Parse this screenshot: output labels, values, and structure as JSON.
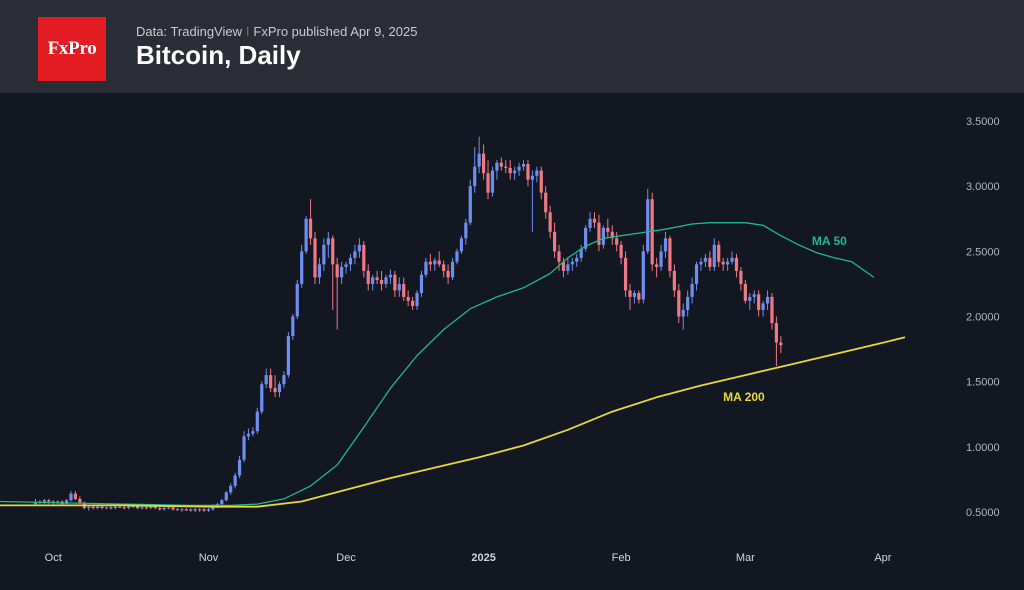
{
  "header": {
    "logo_text": "FxPro",
    "source": "Data: TradingView",
    "separator": "ǀ",
    "publisher": "FxPro published Apr 9, 2025",
    "title": "Bitcoin, Daily"
  },
  "colors": {
    "background": "#131722",
    "header_bg": "#2a2d35",
    "logo_red": "#e31b23",
    "up": "#6f8ff0",
    "down": "#f07a84",
    "ma50": "#1fb98a",
    "ma200": "#e8d83a"
  },
  "chart_data": {
    "type": "candlestick",
    "title": "Bitcoin, Daily",
    "ylim": [
      0.3,
      3.6
    ],
    "y_ticks": [
      "3.5000",
      "3.0000",
      "2.5000",
      "2.0000",
      "1.5000",
      "1.0000",
      "0.5000"
    ],
    "y_tick_values": [
      3.5,
      3.0,
      2.5,
      2.0,
      1.5,
      1.0,
      0.5
    ],
    "x_ticks": [
      "Oct",
      "Nov",
      "Dec",
      "2025",
      "Feb",
      "Mar",
      "Apr"
    ],
    "x_tick_days": [
      4,
      39,
      70,
      101,
      132,
      160,
      191
    ],
    "x_range_days": [
      -8,
      205
    ],
    "series": [
      {
        "name": "MA 50",
        "label": "MA 50",
        "label_at": [
          175,
          2.55
        ],
        "days": [
          -8,
          20,
          35,
          44,
          50,
          56,
          62,
          68,
          74,
          80,
          86,
          92,
          98,
          104,
          110,
          116,
          120,
          124,
          128,
          132,
          136,
          142,
          148,
          152,
          156,
          160,
          164,
          168,
          172,
          176,
          180,
          184,
          189
        ],
        "values": [
          0.58,
          0.56,
          0.55,
          0.55,
          0.56,
          0.6,
          0.7,
          0.86,
          1.15,
          1.45,
          1.7,
          1.9,
          2.06,
          2.15,
          2.22,
          2.33,
          2.45,
          2.54,
          2.6,
          2.62,
          2.64,
          2.67,
          2.71,
          2.72,
          2.72,
          2.72,
          2.7,
          2.62,
          2.55,
          2.49,
          2.45,
          2.42,
          2.3
        ]
      },
      {
        "name": "MA 200",
        "label": "MA 200",
        "label_at": [
          155,
          1.35
        ],
        "days": [
          -8,
          20,
          40,
          50,
          60,
          70,
          80,
          90,
          100,
          110,
          120,
          130,
          140,
          150,
          160,
          170,
          180,
          190,
          196
        ],
        "values": [
          0.55,
          0.55,
          0.54,
          0.54,
          0.58,
          0.67,
          0.76,
          0.84,
          0.92,
          1.01,
          1.13,
          1.27,
          1.38,
          1.47,
          1.55,
          1.63,
          1.71,
          1.79,
          1.84
        ]
      }
    ],
    "candles_ohlc": [
      [
        0.56,
        0.6,
        0.55,
        0.58
      ],
      [
        0.58,
        0.59,
        0.56,
        0.57
      ],
      [
        0.57,
        0.6,
        0.56,
        0.59
      ],
      [
        0.59,
        0.6,
        0.56,
        0.58
      ],
      [
        0.58,
        0.59,
        0.55,
        0.57
      ],
      [
        0.57,
        0.59,
        0.56,
        0.58
      ],
      [
        0.58,
        0.59,
        0.55,
        0.56
      ],
      [
        0.56,
        0.6,
        0.56,
        0.59
      ],
      [
        0.59,
        0.66,
        0.58,
        0.64
      ],
      [
        0.64,
        0.66,
        0.59,
        0.6
      ],
      [
        0.6,
        0.62,
        0.56,
        0.57
      ],
      [
        0.57,
        0.58,
        0.52,
        0.53
      ],
      [
        0.53,
        0.55,
        0.51,
        0.54
      ],
      [
        0.54,
        0.55,
        0.52,
        0.53
      ],
      [
        0.53,
        0.55,
        0.52,
        0.54
      ],
      [
        0.54,
        0.55,
        0.52,
        0.53
      ],
      [
        0.53,
        0.54,
        0.52,
        0.535
      ],
      [
        0.535,
        0.55,
        0.52,
        0.53
      ],
      [
        0.53,
        0.55,
        0.52,
        0.54
      ],
      [
        0.54,
        0.55,
        0.53,
        0.535
      ],
      [
        0.535,
        0.55,
        0.52,
        0.53
      ],
      [
        0.53,
        0.55,
        0.52,
        0.54
      ],
      [
        0.54,
        0.56,
        0.53,
        0.545
      ],
      [
        0.545,
        0.55,
        0.52,
        0.53
      ],
      [
        0.53,
        0.54,
        0.52,
        0.535
      ],
      [
        0.535,
        0.55,
        0.52,
        0.53
      ],
      [
        0.53,
        0.545,
        0.52,
        0.54
      ],
      [
        0.54,
        0.55,
        0.52,
        0.53
      ],
      [
        0.53,
        0.54,
        0.51,
        0.52
      ],
      [
        0.52,
        0.54,
        0.51,
        0.53
      ],
      [
        0.53,
        0.545,
        0.52,
        0.535
      ],
      [
        0.535,
        0.545,
        0.51,
        0.52
      ],
      [
        0.52,
        0.53,
        0.51,
        0.515
      ],
      [
        0.515,
        0.53,
        0.5,
        0.52
      ],
      [
        0.52,
        0.53,
        0.51,
        0.51
      ],
      [
        0.51,
        0.53,
        0.5,
        0.52
      ],
      [
        0.52,
        0.53,
        0.5,
        0.515
      ],
      [
        0.515,
        0.53,
        0.5,
        0.52
      ],
      [
        0.52,
        0.53,
        0.5,
        0.51
      ],
      [
        0.51,
        0.53,
        0.5,
        0.52
      ],
      [
        0.52,
        0.56,
        0.51,
        0.55
      ],
      [
        0.55,
        0.57,
        0.53,
        0.56
      ],
      [
        0.56,
        0.6,
        0.55,
        0.59
      ],
      [
        0.59,
        0.66,
        0.58,
        0.65
      ],
      [
        0.65,
        0.72,
        0.63,
        0.7
      ],
      [
        0.7,
        0.8,
        0.68,
        0.78
      ],
      [
        0.78,
        0.93,
        0.76,
        0.9
      ],
      [
        0.9,
        1.12,
        0.88,
        1.08
      ],
      [
        1.08,
        1.14,
        1.05,
        1.1
      ],
      [
        1.1,
        1.15,
        1.08,
        1.12
      ],
      [
        1.12,
        1.3,
        1.1,
        1.27
      ],
      [
        1.27,
        1.5,
        1.25,
        1.48
      ],
      [
        1.48,
        1.6,
        1.45,
        1.55
      ],
      [
        1.55,
        1.6,
        1.42,
        1.45
      ],
      [
        1.45,
        1.55,
        1.38,
        1.42
      ],
      [
        1.42,
        1.5,
        1.38,
        1.48
      ],
      [
        1.48,
        1.58,
        1.45,
        1.55
      ],
      [
        1.55,
        1.88,
        1.53,
        1.85
      ],
      [
        1.85,
        2.02,
        1.82,
        2.0
      ],
      [
        2.0,
        2.28,
        1.98,
        2.25
      ],
      [
        2.25,
        2.55,
        2.22,
        2.5
      ],
      [
        2.5,
        2.77,
        2.48,
        2.75
      ],
      [
        2.75,
        2.9,
        2.55,
        2.6
      ],
      [
        2.6,
        2.65,
        2.25,
        2.3
      ],
      [
        2.3,
        2.45,
        2.25,
        2.4
      ],
      [
        2.4,
        2.6,
        2.35,
        2.55
      ],
      [
        2.55,
        2.65,
        2.45,
        2.6
      ],
      [
        2.6,
        2.62,
        2.05,
        2.4
      ],
      [
        2.4,
        2.45,
        1.9,
        2.3
      ],
      [
        2.3,
        2.42,
        2.25,
        2.38
      ],
      [
        2.38,
        2.42,
        2.33,
        2.4
      ],
      [
        2.4,
        2.48,
        2.35,
        2.45
      ],
      [
        2.45,
        2.55,
        2.4,
        2.5
      ],
      [
        2.5,
        2.6,
        2.45,
        2.55
      ],
      [
        2.55,
        2.58,
        2.3,
        2.35
      ],
      [
        2.35,
        2.4,
        2.2,
        2.25
      ],
      [
        2.25,
        2.32,
        2.2,
        2.3
      ],
      [
        2.3,
        2.35,
        2.25,
        2.28
      ],
      [
        2.28,
        2.35,
        2.2,
        2.25
      ],
      [
        2.25,
        2.32,
        2.22,
        2.3
      ],
      [
        2.3,
        2.36,
        2.25,
        2.32
      ],
      [
        2.32,
        2.35,
        2.15,
        2.2
      ],
      [
        2.2,
        2.3,
        2.15,
        2.25
      ],
      [
        2.25,
        2.3,
        2.12,
        2.15
      ],
      [
        2.15,
        2.2,
        2.08,
        2.12
      ],
      [
        2.12,
        2.15,
        2.05,
        2.08
      ],
      [
        2.08,
        2.2,
        2.05,
        2.18
      ],
      [
        2.18,
        2.35,
        2.15,
        2.32
      ],
      [
        2.32,
        2.45,
        2.3,
        2.42
      ],
      [
        2.42,
        2.48,
        2.35,
        2.4
      ],
      [
        2.4,
        2.45,
        2.35,
        2.43
      ],
      [
        2.43,
        2.5,
        2.38,
        2.4
      ],
      [
        2.4,
        2.43,
        2.3,
        2.35
      ],
      [
        2.35,
        2.4,
        2.25,
        2.3
      ],
      [
        2.3,
        2.45,
        2.28,
        2.42
      ],
      [
        2.42,
        2.52,
        2.4,
        2.5
      ],
      [
        2.5,
        2.62,
        2.48,
        2.6
      ],
      [
        2.6,
        2.75,
        2.55,
        2.72
      ],
      [
        2.72,
        3.05,
        2.7,
        3.0
      ],
      [
        3.0,
        3.3,
        2.95,
        3.15
      ],
      [
        3.15,
        3.38,
        3.1,
        3.25
      ],
      [
        3.25,
        3.32,
        3.05,
        3.1
      ],
      [
        3.1,
        3.2,
        2.9,
        2.95
      ],
      [
        2.95,
        3.15,
        2.92,
        3.12
      ],
      [
        3.12,
        3.2,
        3.05,
        3.18
      ],
      [
        3.18,
        3.22,
        3.12,
        3.15
      ],
      [
        3.15,
        3.2,
        3.1,
        3.14
      ],
      [
        3.14,
        3.2,
        3.05,
        3.1
      ],
      [
        3.1,
        3.15,
        3.05,
        3.12
      ],
      [
        3.12,
        3.18,
        3.08,
        3.15
      ],
      [
        3.15,
        3.2,
        3.12,
        3.17
      ],
      [
        3.17,
        3.2,
        3.0,
        3.05
      ],
      [
        3.05,
        3.12,
        2.65,
        3.08
      ],
      [
        3.08,
        3.15,
        3.03,
        3.12
      ],
      [
        3.12,
        3.15,
        2.9,
        2.95
      ],
      [
        2.95,
        3.0,
        2.75,
        2.8
      ],
      [
        2.8,
        2.85,
        2.6,
        2.65
      ],
      [
        2.65,
        2.72,
        2.45,
        2.5
      ],
      [
        2.5,
        2.55,
        2.35,
        2.42
      ],
      [
        2.42,
        2.45,
        2.3,
        2.35
      ],
      [
        2.35,
        2.45,
        2.32,
        2.4
      ],
      [
        2.4,
        2.45,
        2.35,
        2.42
      ],
      [
        2.42,
        2.48,
        2.38,
        2.45
      ],
      [
        2.45,
        2.55,
        2.42,
        2.52
      ],
      [
        2.52,
        2.7,
        2.5,
        2.68
      ],
      [
        2.68,
        2.8,
        2.65,
        2.75
      ],
      [
        2.75,
        2.8,
        2.68,
        2.72
      ],
      [
        2.72,
        2.78,
        2.5,
        2.55
      ],
      [
        2.55,
        2.7,
        2.52,
        2.68
      ],
      [
        2.68,
        2.75,
        2.6,
        2.65
      ],
      [
        2.65,
        2.7,
        2.55,
        2.6
      ],
      [
        2.6,
        2.65,
        2.5,
        2.55
      ],
      [
        2.55,
        2.58,
        2.4,
        2.45
      ],
      [
        2.45,
        2.5,
        2.15,
        2.2
      ],
      [
        2.2,
        2.25,
        2.05,
        2.15
      ],
      [
        2.15,
        2.2,
        2.1,
        2.18
      ],
      [
        2.18,
        2.2,
        2.1,
        2.13
      ],
      [
        2.13,
        2.55,
        2.1,
        2.5
      ],
      [
        2.5,
        2.98,
        2.48,
        2.9
      ],
      [
        2.9,
        2.95,
        2.35,
        2.4
      ],
      [
        2.4,
        2.45,
        2.3,
        2.38
      ],
      [
        2.38,
        2.55,
        2.35,
        2.5
      ],
      [
        2.5,
        2.65,
        2.45,
        2.6
      ],
      [
        2.6,
        2.62,
        2.3,
        2.35
      ],
      [
        2.35,
        2.4,
        2.15,
        2.2
      ],
      [
        2.2,
        2.25,
        1.95,
        2.0
      ],
      [
        2.0,
        2.1,
        1.9,
        2.05
      ],
      [
        2.05,
        2.2,
        2.0,
        2.15
      ],
      [
        2.15,
        2.3,
        2.1,
        2.25
      ],
      [
        2.25,
        2.42,
        2.2,
        2.4
      ],
      [
        2.4,
        2.45,
        2.35,
        2.42
      ],
      [
        2.42,
        2.48,
        2.38,
        2.45
      ],
      [
        2.45,
        2.5,
        2.35,
        2.38
      ],
      [
        2.38,
        2.6,
        2.35,
        2.55
      ],
      [
        2.55,
        2.58,
        2.38,
        2.42
      ],
      [
        2.42,
        2.45,
        2.35,
        2.4
      ],
      [
        2.4,
        2.45,
        2.35,
        2.42
      ],
      [
        2.42,
        2.5,
        2.4,
        2.45
      ],
      [
        2.45,
        2.48,
        2.3,
        2.35
      ],
      [
        2.35,
        2.38,
        2.2,
        2.25
      ],
      [
        2.25,
        2.28,
        2.1,
        2.12
      ],
      [
        2.12,
        2.18,
        2.05,
        2.15
      ],
      [
        2.15,
        2.2,
        2.1,
        2.17
      ],
      [
        2.17,
        2.2,
        2.0,
        2.05
      ],
      [
        2.05,
        2.12,
        2.0,
        2.1
      ],
      [
        2.1,
        2.2,
        2.05,
        2.15
      ],
      [
        2.15,
        2.18,
        1.9,
        1.95
      ],
      [
        1.95,
        2.0,
        1.62,
        1.8
      ],
      [
        1.8,
        1.85,
        1.72,
        1.78
      ]
    ]
  }
}
